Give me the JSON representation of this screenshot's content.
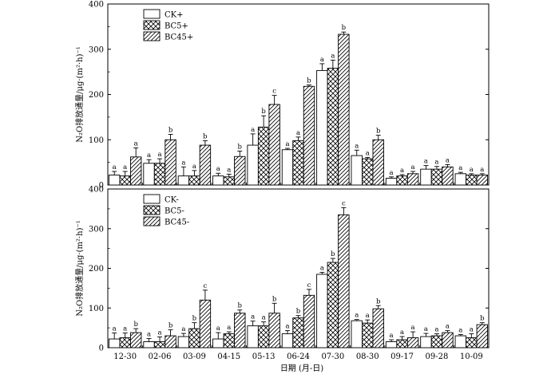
{
  "chart_data": [
    {
      "type": "bar",
      "categories": [
        "12-30",
        "02-06",
        "03-09",
        "04-15",
        "05-13",
        "06-24",
        "07-30",
        "08-30",
        "09-17",
        "09-28",
        "10-09"
      ],
      "ylabel": "N₂O排放通量/μg·(m²·h)⁻¹",
      "xlabel": "",
      "ylim": [
        0,
        400
      ],
      "yticks": [
        0,
        100,
        200,
        300,
        400
      ],
      "legend_position": "top-left",
      "series": [
        {
          "name": "CK+",
          "pattern": "open",
          "values": [
            22,
            48,
            20,
            20,
            88,
            78,
            253,
            65,
            15,
            35,
            25
          ],
          "errors": [
            8,
            8,
            20,
            6,
            25,
            3,
            15,
            12,
            3,
            8,
            3
          ],
          "sig": [
            "a",
            "a",
            "a",
            "a",
            "a",
            "a",
            "a",
            "a",
            "a",
            "a",
            "a"
          ]
        },
        {
          "name": "BC5+",
          "pattern": "cross",
          "values": [
            20,
            48,
            20,
            18,
            128,
            98,
            258,
            58,
            20,
            35,
            22
          ],
          "errors": [
            10,
            10,
            12,
            6,
            25,
            8,
            18,
            3,
            3,
            6,
            3
          ],
          "sig": [
            "a",
            "a",
            "a",
            "a",
            "b",
            "a",
            "a",
            "a",
            "a",
            "a",
            "a"
          ]
        },
        {
          "name": "BC45+",
          "pattern": "diag",
          "values": [
            62,
            100,
            88,
            63,
            178,
            218,
            333,
            100,
            25,
            40,
            22
          ],
          "errors": [
            20,
            12,
            10,
            12,
            20,
            3,
            5,
            10,
            5,
            5,
            3
          ],
          "sig": [
            "a",
            "b",
            "b",
            "b",
            "c",
            "b",
            "b",
            "b",
            "a",
            "a",
            "a"
          ]
        }
      ]
    },
    {
      "type": "bar",
      "categories": [
        "12-30",
        "02-06",
        "03-09",
        "04-15",
        "05-13",
        "06-24",
        "07-30",
        "08-30",
        "09-17",
        "09-28",
        "10-09"
      ],
      "ylabel": "N₂O排放通量/μg·(m²·h)⁻¹",
      "xlabel": "日期 (月-日)",
      "ylim": [
        0,
        400
      ],
      "yticks": [
        0,
        100,
        200,
        300,
        400
      ],
      "legend_position": "top-left",
      "series": [
        {
          "name": "CK-",
          "pattern": "open",
          "values": [
            22,
            15,
            28,
            22,
            55,
            35,
            185,
            68,
            15,
            28,
            30
          ],
          "errors": [
            15,
            8,
            8,
            16,
            12,
            8,
            5,
            3,
            5,
            8,
            3
          ],
          "sig": [
            "a",
            "a",
            "a",
            "a",
            "a",
            "a",
            "a",
            "a",
            "a",
            "a",
            "a"
          ]
        },
        {
          "name": "BC5-",
          "pattern": "cross",
          "values": [
            25,
            15,
            48,
            35,
            55,
            75,
            215,
            62,
            20,
            30,
            25
          ],
          "errors": [
            12,
            12,
            15,
            5,
            10,
            6,
            10,
            8,
            8,
            5,
            10
          ],
          "sig": [
            "a",
            "a",
            "b",
            "a",
            "a",
            "b",
            "b",
            "a",
            "a",
            "a",
            "a"
          ]
        },
        {
          "name": "BC45-",
          "pattern": "diag",
          "values": [
            38,
            30,
            120,
            87,
            87,
            132,
            335,
            98,
            25,
            38,
            58
          ],
          "errors": [
            10,
            15,
            25,
            8,
            25,
            15,
            18,
            8,
            15,
            5,
            5
          ],
          "sig": [
            "b",
            "b",
            "c",
            "b",
            "b",
            "c",
            "c",
            "b",
            "a",
            "a",
            "b"
          ]
        }
      ]
    }
  ]
}
